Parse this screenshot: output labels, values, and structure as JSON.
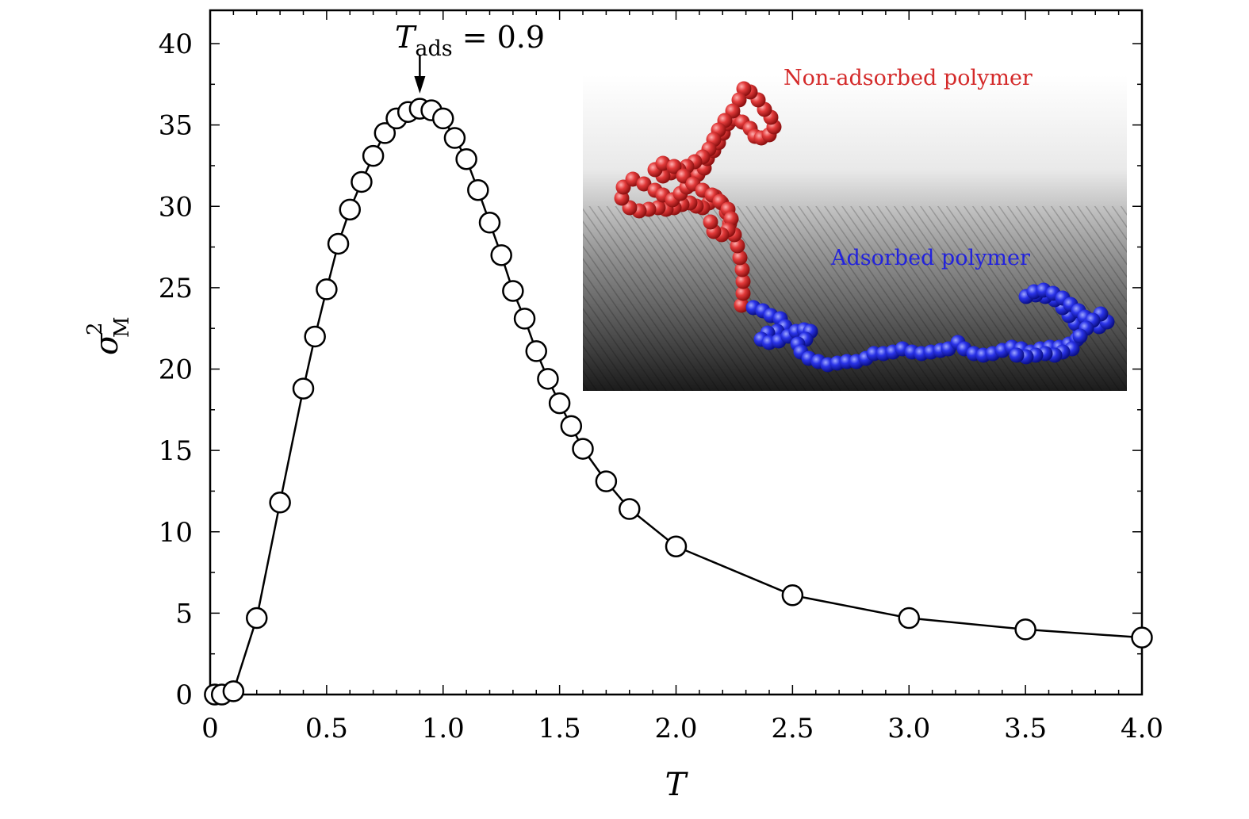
{
  "chart_data": {
    "type": "line",
    "xlabel": "T",
    "ylabel": {
      "symbol": "σ",
      "superscript": "2",
      "subscript": "M"
    },
    "xlim": [
      0,
      4.0
    ],
    "ylim": [
      0,
      42
    ],
    "x_ticks": [
      "0",
      "0.5",
      "1.0",
      "1.5",
      "2.0",
      "2.5",
      "3.0",
      "3.5",
      "4.0"
    ],
    "x_tick_values": [
      0,
      0.5,
      1.0,
      1.5,
      2.0,
      2.5,
      3.0,
      3.5,
      4.0
    ],
    "y_ticks": [
      "0",
      "5",
      "10",
      "15",
      "20",
      "25",
      "30",
      "35",
      "40"
    ],
    "y_tick_values": [
      0,
      5,
      10,
      15,
      20,
      25,
      30,
      35,
      40
    ],
    "grid": false,
    "marker": "open-circle",
    "series": [
      {
        "x": [
          0.02,
          0.05,
          0.1,
          0.2,
          0.3,
          0.4,
          0.45,
          0.5,
          0.55,
          0.6,
          0.65,
          0.7,
          0.75,
          0.8,
          0.85,
          0.9,
          0.95,
          1.0,
          1.05,
          1.1,
          1.15,
          1.2,
          1.25,
          1.3,
          1.35,
          1.4,
          1.45,
          1.5,
          1.55,
          1.6,
          1.7,
          1.8,
          2.0,
          2.5,
          3.0,
          3.5,
          4.0
        ],
        "y": [
          0.0,
          0.0,
          0.2,
          4.7,
          11.8,
          18.8,
          22.0,
          24.9,
          27.7,
          29.8,
          31.5,
          33.1,
          34.5,
          35.4,
          35.8,
          36.0,
          35.9,
          35.4,
          34.2,
          32.9,
          31.0,
          29.0,
          27.0,
          24.8,
          23.1,
          21.1,
          19.4,
          17.9,
          16.5,
          15.1,
          13.1,
          11.4,
          9.1,
          6.1,
          4.7,
          4.0,
          3.5
        ]
      }
    ],
    "annotations": [
      {
        "text_main": "T",
        "text_sub": "ads",
        "text_rest": " = 0.9",
        "arrow_to_x": 0.9
      }
    ],
    "inset": {
      "non_adsorbed_label": "Non-adsorbed polymer",
      "adsorbed_label": "Adsorbed polymer",
      "non_adsorbed_color": "#d42a2a",
      "adsorbed_color": "#2222dd"
    }
  }
}
